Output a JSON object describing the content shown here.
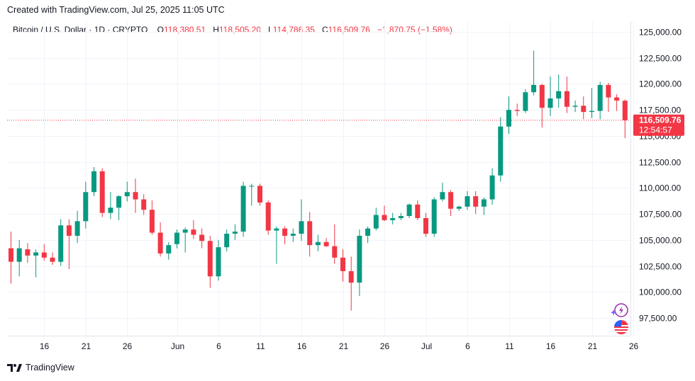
{
  "header": {
    "created_text": "Created with TradingView.com, Jul 25, 2025 11:05 UTC"
  },
  "legend": {
    "symbol": "Bitcoin / U.S. Dollar · 1D · CRYPTO",
    "open_label": "O",
    "open_value": "118,380.51",
    "high_label": "H",
    "high_value": "118,505.20",
    "low_label": "L",
    "low_value": "114,786.35",
    "close_label": "C",
    "close_value": "116,509.76",
    "change": "−1,870.75 (−1.58%)"
  },
  "last_price": {
    "price": "116,509.76",
    "countdown": "12:54:57"
  },
  "footer": {
    "logo_text": "TradingView"
  },
  "icons": [
    "lightning-icon",
    "us-flag-icon",
    "tradingview-logo-icon"
  ],
  "colors": {
    "up": "#089981",
    "down": "#f23645",
    "grid": "#f0f3fa",
    "text": "#131722"
  },
  "chart_data": {
    "type": "candlestick",
    "title": "Bitcoin / U.S. Dollar · 1D · CRYPTO",
    "ylim": [
      95000,
      126500
    ],
    "y_ticks": [
      97500,
      100000,
      102500,
      105000,
      107500,
      110000,
      112500,
      115000,
      117500,
      120000,
      122500,
      125000
    ],
    "y_tick_labels": [
      "97,500.00",
      "100,000.00",
      "102,500.00",
      "105,000.00",
      "107,500.00",
      "110,000.00",
      "112,500.00",
      "115,000.00",
      "117,500.00",
      "120,000.00",
      "122,500.00",
      "125,000.00"
    ],
    "x_tick_labels": [
      {
        "index": 4,
        "label": "16"
      },
      {
        "index": 9,
        "label": "21"
      },
      {
        "index": 14,
        "label": "26"
      },
      {
        "index": 20,
        "label": "Jun"
      },
      {
        "index": 25,
        "label": "6"
      },
      {
        "index": 30,
        "label": "11"
      },
      {
        "index": 35,
        "label": "16"
      },
      {
        "index": 40,
        "label": "21"
      },
      {
        "index": 45,
        "label": "26"
      },
      {
        "index": 50,
        "label": "Jul"
      },
      {
        "index": 55,
        "label": "6"
      },
      {
        "index": 60,
        "label": "11"
      },
      {
        "index": 65,
        "label": "16"
      },
      {
        "index": 70,
        "label": "21"
      },
      {
        "index": 75,
        "label": "26"
      }
    ],
    "last_price": 116509.76,
    "candles": [
      {
        "date": "May 12",
        "o": 104200,
        "h": 105800,
        "l": 100800,
        "c": 102900
      },
      {
        "date": "May 13",
        "o": 102900,
        "h": 105000,
        "l": 101500,
        "c": 104200
      },
      {
        "date": "May 14",
        "o": 104100,
        "h": 104700,
        "l": 102800,
        "c": 103500
      },
      {
        "date": "May 15",
        "o": 103500,
        "h": 104100,
        "l": 101400,
        "c": 103800
      },
      {
        "date": "May 16",
        "o": 103800,
        "h": 104600,
        "l": 103000,
        "c": 103300
      },
      {
        "date": "May 17",
        "o": 103300,
        "h": 103800,
        "l": 102600,
        "c": 102900
      },
      {
        "date": "May 18",
        "o": 102900,
        "h": 107000,
        "l": 102500,
        "c": 106400
      },
      {
        "date": "May 19",
        "o": 106400,
        "h": 107000,
        "l": 102200,
        "c": 105400
      },
      {
        "date": "May 20",
        "o": 105400,
        "h": 107800,
        "l": 104700,
        "c": 106800
      },
      {
        "date": "May 21",
        "o": 106800,
        "h": 110600,
        "l": 106100,
        "c": 109600
      },
      {
        "date": "May 22",
        "o": 109600,
        "h": 112000,
        "l": 109200,
        "c": 111600
      },
      {
        "date": "May 23",
        "o": 111600,
        "h": 111900,
        "l": 107200,
        "c": 107600
      },
      {
        "date": "May 24",
        "o": 107600,
        "h": 109600,
        "l": 107000,
        "c": 108100
      },
      {
        "date": "May 25",
        "o": 108100,
        "h": 109300,
        "l": 106900,
        "c": 109200
      },
      {
        "date": "May 26",
        "o": 109200,
        "h": 110600,
        "l": 108700,
        "c": 109600
      },
      {
        "date": "May 27",
        "o": 109600,
        "h": 110900,
        "l": 107600,
        "c": 108900
      },
      {
        "date": "May 28",
        "o": 108900,
        "h": 109400,
        "l": 107400,
        "c": 107900
      },
      {
        "date": "May 29",
        "o": 107900,
        "h": 108800,
        "l": 105500,
        "c": 105700
      },
      {
        "date": "May 30",
        "o": 105700,
        "h": 106700,
        "l": 103400,
        "c": 103700
      },
      {
        "date": "May 31",
        "o": 103700,
        "h": 104800,
        "l": 103100,
        "c": 104500
      },
      {
        "date": "Jun 1",
        "o": 104600,
        "h": 106000,
        "l": 104200,
        "c": 105700
      },
      {
        "date": "Jun 2",
        "o": 105700,
        "h": 106200,
        "l": 103800,
        "c": 106000
      },
      {
        "date": "Jun 3",
        "o": 106000,
        "h": 106900,
        "l": 105100,
        "c": 105500
      },
      {
        "date": "Jun 4",
        "o": 105500,
        "h": 106100,
        "l": 104200,
        "c": 104900
      },
      {
        "date": "Jun 5",
        "o": 104900,
        "h": 105400,
        "l": 100400,
        "c": 101500
      },
      {
        "date": "Jun 6",
        "o": 101500,
        "h": 105000,
        "l": 101100,
        "c": 104300
      },
      {
        "date": "Jun 7",
        "o": 104300,
        "h": 106000,
        "l": 103900,
        "c": 105600
      },
      {
        "date": "Jun 8",
        "o": 105600,
        "h": 106500,
        "l": 105000,
        "c": 105800
      },
      {
        "date": "Jun 9",
        "o": 105800,
        "h": 110600,
        "l": 105300,
        "c": 110200
      },
      {
        "date": "Jun 10",
        "o": 110200,
        "h": 110400,
        "l": 108300,
        "c": 110200
      },
      {
        "date": "Jun 11",
        "o": 110200,
        "h": 110400,
        "l": 108300,
        "c": 108600
      },
      {
        "date": "Jun 12",
        "o": 108600,
        "h": 108800,
        "l": 105500,
        "c": 105900
      },
      {
        "date": "Jun 13",
        "o": 105900,
        "h": 106300,
        "l": 102700,
        "c": 106100
      },
      {
        "date": "Jun 14",
        "o": 106100,
        "h": 106300,
        "l": 104600,
        "c": 105400
      },
      {
        "date": "Jun 15",
        "o": 105400,
        "h": 106100,
        "l": 104800,
        "c": 105600
      },
      {
        "date": "Jun 16",
        "o": 105600,
        "h": 108900,
        "l": 104900,
        "c": 106800
      },
      {
        "date": "Jun 17",
        "o": 106800,
        "h": 107700,
        "l": 103400,
        "c": 104500
      },
      {
        "date": "Jun 18",
        "o": 104500,
        "h": 105500,
        "l": 103900,
        "c": 104800
      },
      {
        "date": "Jun 19",
        "o": 104800,
        "h": 105200,
        "l": 104300,
        "c": 104400
      },
      {
        "date": "Jun 20",
        "o": 104400,
        "h": 106500,
        "l": 102700,
        "c": 103300
      },
      {
        "date": "Jun 21",
        "o": 103300,
        "h": 104100,
        "l": 101000,
        "c": 102000
      },
      {
        "date": "Jun 22",
        "o": 102000,
        "h": 103400,
        "l": 98200,
        "c": 100900
      },
      {
        "date": "Jun 23",
        "o": 100900,
        "h": 106000,
        "l": 99600,
        "c": 105400
      },
      {
        "date": "Jun 24",
        "o": 105400,
        "h": 106300,
        "l": 104700,
        "c": 106100
      },
      {
        "date": "Jun 25",
        "o": 106100,
        "h": 108100,
        "l": 105900,
        "c": 107400
      },
      {
        "date": "Jun 26",
        "o": 107400,
        "h": 108300,
        "l": 106800,
        "c": 106900
      },
      {
        "date": "Jun 27",
        "o": 106900,
        "h": 107600,
        "l": 106500,
        "c": 107100
      },
      {
        "date": "Jun 28",
        "o": 107100,
        "h": 107600,
        "l": 106900,
        "c": 107300
      },
      {
        "date": "Jun 29",
        "o": 107300,
        "h": 108500,
        "l": 107100,
        "c": 108400
      },
      {
        "date": "Jun 30",
        "o": 108400,
        "h": 108800,
        "l": 106900,
        "c": 107100
      },
      {
        "date": "Jul 1",
        "o": 107100,
        "h": 107600,
        "l": 105300,
        "c": 105600
      },
      {
        "date": "Jul 2",
        "o": 105600,
        "h": 109100,
        "l": 105300,
        "c": 108900
      },
      {
        "date": "Jul 3",
        "o": 108900,
        "h": 110500,
        "l": 108700,
        "c": 109600
      },
      {
        "date": "Jul 4",
        "o": 109600,
        "h": 109800,
        "l": 107300,
        "c": 108000
      },
      {
        "date": "Jul 5",
        "o": 108000,
        "h": 108300,
        "l": 107800,
        "c": 108200
      },
      {
        "date": "Jul 6",
        "o": 108200,
        "h": 109700,
        "l": 107900,
        "c": 109200
      },
      {
        "date": "Jul 7",
        "o": 109200,
        "h": 109700,
        "l": 107500,
        "c": 108200
      },
      {
        "date": "Jul 8",
        "o": 108200,
        "h": 109100,
        "l": 107400,
        "c": 108900
      },
      {
        "date": "Jul 9",
        "o": 108900,
        "h": 111900,
        "l": 108400,
        "c": 111200
      },
      {
        "date": "Jul 10",
        "o": 111200,
        "h": 116800,
        "l": 110600,
        "c": 115900
      },
      {
        "date": "Jul 11",
        "o": 115900,
        "h": 118800,
        "l": 115200,
        "c": 117500
      },
      {
        "date": "Jul 12",
        "o": 117500,
        "h": 118100,
        "l": 116900,
        "c": 117400
      },
      {
        "date": "Jul 13",
        "o": 117400,
        "h": 119500,
        "l": 117200,
        "c": 119200
      },
      {
        "date": "Jul 14",
        "o": 119200,
        "h": 123200,
        "l": 118900,
        "c": 119900
      },
      {
        "date": "Jul 15",
        "o": 119900,
        "h": 120000,
        "l": 115800,
        "c": 117700
      },
      {
        "date": "Jul 16",
        "o": 117700,
        "h": 120700,
        "l": 116900,
        "c": 118600
      },
      {
        "date": "Jul 17",
        "o": 118600,
        "h": 120900,
        "l": 117700,
        "c": 119300
      },
      {
        "date": "Jul 18",
        "o": 119300,
        "h": 120700,
        "l": 117200,
        "c": 117800
      },
      {
        "date": "Jul 19",
        "o": 117800,
        "h": 118400,
        "l": 117300,
        "c": 117900
      },
      {
        "date": "Jul 20",
        "o": 117900,
        "h": 118800,
        "l": 116600,
        "c": 117300
      },
      {
        "date": "Jul 21",
        "o": 117300,
        "h": 119600,
        "l": 116700,
        "c": 117400
      },
      {
        "date": "Jul 22",
        "o": 117400,
        "h": 120200,
        "l": 116600,
        "c": 119900
      },
      {
        "date": "Jul 23",
        "o": 119900,
        "h": 120100,
        "l": 117300,
        "c": 118700
      },
      {
        "date": "Jul 24",
        "o": 118700,
        "h": 119000,
        "l": 117400,
        "c": 118400
      },
      {
        "date": "Jul 25",
        "o": 118380.51,
        "h": 118505.2,
        "l": 114786.35,
        "c": 116509.76
      }
    ]
  }
}
